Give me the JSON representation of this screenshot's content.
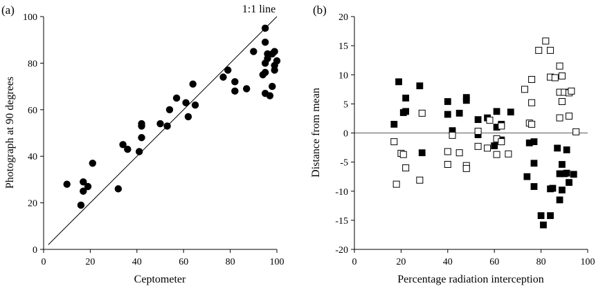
{
  "chart_data": [
    {
      "type": "scatter",
      "panel_label": "(a)",
      "xlabel": "Ceptometer",
      "ylabel": "Photograph at 90 degrees",
      "xlim": [
        0,
        100
      ],
      "ylim": [
        0,
        100
      ],
      "xticks": [
        0,
        20,
        40,
        60,
        80,
        100
      ],
      "yticks": [
        0,
        20,
        40,
        60,
        80,
        100
      ],
      "line_label": "1:1 line",
      "reference_line": [
        [
          2,
          2
        ],
        [
          100,
          100
        ]
      ],
      "marker_color": "#000000",
      "points": [
        [
          10,
          28
        ],
        [
          16,
          19
        ],
        [
          17,
          29
        ],
        [
          17,
          25
        ],
        [
          19,
          27
        ],
        [
          21,
          37
        ],
        [
          32,
          26
        ],
        [
          34,
          45
        ],
        [
          36,
          43
        ],
        [
          41,
          42
        ],
        [
          42,
          48
        ],
        [
          42,
          53
        ],
        [
          42,
          54
        ],
        [
          50,
          54
        ],
        [
          53,
          53
        ],
        [
          54,
          60
        ],
        [
          57,
          65
        ],
        [
          61,
          63
        ],
        [
          62,
          57
        ],
        [
          64,
          71
        ],
        [
          65,
          62
        ],
        [
          77,
          74
        ],
        [
          79,
          77
        ],
        [
          82,
          68
        ],
        [
          82,
          72
        ],
        [
          87,
          69
        ],
        [
          90,
          85
        ],
        [
          94,
          75
        ],
        [
          95,
          80
        ],
        [
          95,
          95
        ],
        [
          95,
          89
        ],
        [
          95,
          76
        ],
        [
          95,
          67
        ],
        [
          96,
          84
        ],
        [
          96,
          82
        ],
        [
          97,
          66
        ],
        [
          98,
          84
        ],
        [
          98,
          70
        ],
        [
          99,
          85
        ],
        [
          99,
          79
        ],
        [
          99,
          77
        ],
        [
          100,
          81
        ]
      ]
    },
    {
      "type": "scatter",
      "panel_label": "(b)",
      "xlabel": "Percentage radiation interception",
      "ylabel": "Distance from mean",
      "xlim": [
        0,
        100
      ],
      "ylim": [
        -20,
        20
      ],
      "xticks": [
        0,
        20,
        40,
        60,
        80,
        100
      ],
      "yticks": [
        -20,
        -15,
        -10,
        -5,
        0,
        5,
        10,
        15,
        20
      ],
      "zero_line_color": "#888888",
      "series": [
        {
          "marker": "filled-square",
          "color": "#000000",
          "points": [
            [
              17,
              1.5
            ],
            [
              19,
              8.8
            ],
            [
              21,
              3.5
            ],
            [
              22,
              6.0
            ],
            [
              22,
              3.7
            ],
            [
              28,
              8.1
            ],
            [
              29,
              -3.4
            ],
            [
              40,
              5.4
            ],
            [
              40,
              3.2
            ],
            [
              42,
              0.4
            ],
            [
              45,
              3.4
            ],
            [
              48,
              5.6
            ],
            [
              48,
              6.1
            ],
            [
              53,
              2.3
            ],
            [
              53,
              -0.3
            ],
            [
              57,
              2.6
            ],
            [
              60,
              -2.2
            ],
            [
              61,
              3.7
            ],
            [
              61,
              1.0
            ],
            [
              63,
              1.5
            ],
            [
              63,
              -1.2
            ],
            [
              67,
              3.6
            ],
            [
              74,
              -7.5
            ],
            [
              75,
              -1.7
            ],
            [
              77,
              -1.5
            ],
            [
              77,
              -5.2
            ],
            [
              77,
              -9.2
            ],
            [
              80,
              -14.2
            ],
            [
              81,
              -15.8
            ],
            [
              84,
              -9.6
            ],
            [
              84,
              -14.2
            ],
            [
              85,
              -9.5
            ],
            [
              87,
              -2.6
            ],
            [
              88,
              -7.0
            ],
            [
              88,
              -11.5
            ],
            [
              89,
              -5.4
            ],
            [
              89,
              -9.8
            ],
            [
              90,
              -7.0
            ],
            [
              91,
              -6.9
            ],
            [
              91,
              -2.9
            ],
            [
              92,
              -8.5
            ],
            [
              94,
              -7.1
            ]
          ]
        },
        {
          "marker": "open-square",
          "color": "#000000",
          "points": [
            [
              17,
              -1.5
            ],
            [
              18,
              -8.8
            ],
            [
              20,
              -3.5
            ],
            [
              21,
              -3.7
            ],
            [
              22,
              -6.0
            ],
            [
              28,
              -8.1
            ],
            [
              29,
              3.4
            ],
            [
              40,
              -5.4
            ],
            [
              40,
              -3.2
            ],
            [
              42,
              -0.4
            ],
            [
              45,
              -3.4
            ],
            [
              48,
              -5.6
            ],
            [
              48,
              -6.1
            ],
            [
              53,
              -2.3
            ],
            [
              53,
              0.3
            ],
            [
              57,
              -2.6
            ],
            [
              58,
              2.2
            ],
            [
              61,
              -3.7
            ],
            [
              61,
              -1.0
            ],
            [
              63,
              -1.5
            ],
            [
              63,
              1.2
            ],
            [
              66,
              -3.6
            ],
            [
              73,
              7.5
            ],
            [
              75,
              1.7
            ],
            [
              76,
              1.5
            ],
            [
              76,
              5.2
            ],
            [
              76,
              9.2
            ],
            [
              79,
              14.2
            ],
            [
              82,
              15.8
            ],
            [
              84,
              9.6
            ],
            [
              84,
              14.2
            ],
            [
              86,
              9.5
            ],
            [
              88,
              2.6
            ],
            [
              88,
              7.0
            ],
            [
              88,
              11.5
            ],
            [
              89,
              5.4
            ],
            [
              89,
              9.8
            ],
            [
              90,
              7.0
            ],
            [
              92,
              2.9
            ],
            [
              92,
              6.9
            ],
            [
              93,
              7.2
            ],
            [
              95,
              0.2
            ]
          ]
        }
      ]
    }
  ]
}
